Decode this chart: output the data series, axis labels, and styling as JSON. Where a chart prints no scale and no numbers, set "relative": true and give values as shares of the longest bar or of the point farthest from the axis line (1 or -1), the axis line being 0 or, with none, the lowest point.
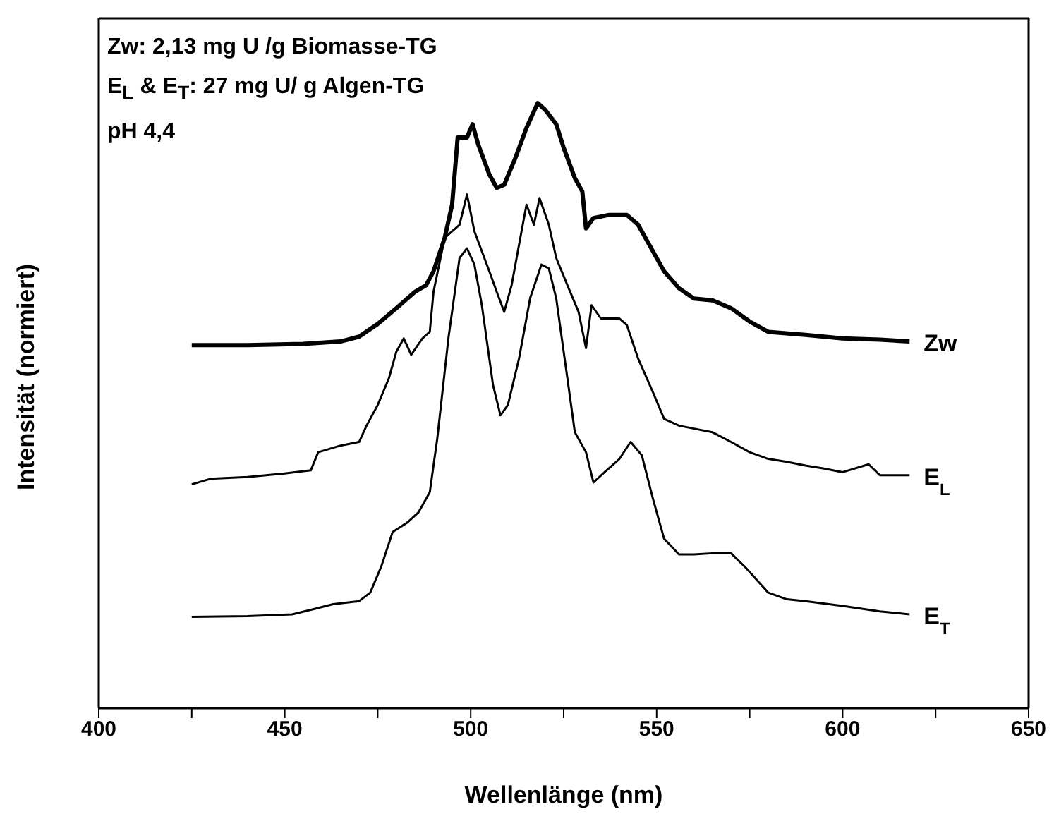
{
  "chart_data": {
    "type": "line",
    "relative": true,
    "xlabel": "Wellenlänge (nm)",
    "ylabel": "Intensität (normiert)",
    "xlim": [
      400,
      650
    ],
    "xticks": [
      400,
      {
        "value": 425,
        "label": null
      },
      450,
      {
        "value": 475,
        "label": null
      },
      500,
      {
        "value": 525,
        "label": null
      },
      550,
      {
        "value": 575,
        "label": null
      },
      600,
      {
        "value": 625,
        "label": null
      },
      650
    ],
    "annotations": [
      "Zw: 2,13 mg U /g Biomasse-TG",
      "E$_{L}$ & E$_{T}$:  27 mg U/ g Algen-TG",
      "pH 4,4"
    ],
    "grid": false,
    "legend": false,
    "marker": "none",
    "line_style": "solid",
    "series": [
      {
        "name": "Zw",
        "color": "#000000",
        "x": [
          425,
          440,
          455,
          465,
          470,
          475,
          480,
          485,
          488,
          490,
          493,
          495,
          496.5,
          499,
          500.5,
          502,
          505,
          507,
          509,
          512,
          515,
          518,
          520,
          523,
          525,
          528,
          530,
          531,
          533,
          537,
          542,
          545,
          548,
          552,
          556,
          560,
          565,
          570,
          575,
          580,
          590,
          600,
          610,
          618
        ],
        "values": [
          0.6,
          0.6,
          0.602,
          0.606,
          0.614,
          0.635,
          0.661,
          0.688,
          0.699,
          0.722,
          0.777,
          0.832,
          0.943,
          0.943,
          0.965,
          0.932,
          0.882,
          0.86,
          0.865,
          0.909,
          0.959,
          1,
          0.989,
          0.965,
          0.926,
          0.876,
          0.854,
          0.793,
          0.81,
          0.815,
          0.815,
          0.799,
          0.766,
          0.722,
          0.694,
          0.677,
          0.674,
          0.661,
          0.639,
          0.622,
          0.617,
          0.611,
          0.609,
          0.606
        ]
      },
      {
        "name": "E$_{L}$",
        "color": "#000000",
        "x": [
          425,
          430,
          440,
          450,
          457,
          459,
          465,
          470,
          472,
          475,
          478,
          480,
          482,
          484,
          487,
          489,
          490,
          493,
          495,
          497,
          499,
          501,
          503,
          505,
          507,
          509,
          511,
          513,
          515,
          517,
          518.5,
          521,
          523,
          526,
          529,
          531,
          532.5,
          535,
          540,
          542,
          545,
          549,
          552,
          556,
          560,
          565,
          570,
          575,
          580,
          585,
          590,
          595,
          600,
          607,
          610,
          618
        ],
        "values": [
          0.37,
          0.379,
          0.382,
          0.388,
          0.393,
          0.423,
          0.434,
          0.44,
          0.467,
          0.501,
          0.545,
          0.589,
          0.611,
          0.584,
          0.611,
          0.622,
          0.688,
          0.777,
          0.788,
          0.799,
          0.849,
          0.788,
          0.755,
          0.722,
          0.688,
          0.655,
          0.699,
          0.766,
          0.832,
          0.799,
          0.843,
          0.799,
          0.744,
          0.699,
          0.655,
          0.595,
          0.666,
          0.644,
          0.644,
          0.633,
          0.578,
          0.522,
          0.478,
          0.467,
          0.462,
          0.456,
          0.44,
          0.423,
          0.412,
          0.407,
          0.401,
          0.396,
          0.39,
          0.403,
          0.385,
          0.385
        ]
      },
      {
        "name": "E$_{T}$",
        "color": "#000000",
        "x": [
          425,
          440,
          452,
          458,
          463,
          470,
          473,
          476,
          479,
          483,
          486,
          489,
          491,
          494,
          497,
          499,
          501,
          503,
          506,
          508,
          510,
          513,
          516,
          519,
          521,
          523,
          526,
          528,
          531,
          533,
          536,
          540,
          543,
          546,
          549,
          552,
          556,
          560,
          565,
          570,
          574,
          580,
          585,
          590,
          600,
          610,
          618
        ],
        "values": [
          0.151,
          0.152,
          0.155,
          0.164,
          0.172,
          0.177,
          0.191,
          0.235,
          0.291,
          0.307,
          0.324,
          0.357,
          0.445,
          0.611,
          0.744,
          0.76,
          0.733,
          0.666,
          0.534,
          0.484,
          0.501,
          0.578,
          0.678,
          0.733,
          0.727,
          0.677,
          0.545,
          0.456,
          0.423,
          0.373,
          0.39,
          0.412,
          0.44,
          0.418,
          0.346,
          0.28,
          0.254,
          0.254,
          0.256,
          0.256,
          0.232,
          0.191,
          0.18,
          0.177,
          0.169,
          0.16,
          0.155
        ]
      }
    ]
  }
}
